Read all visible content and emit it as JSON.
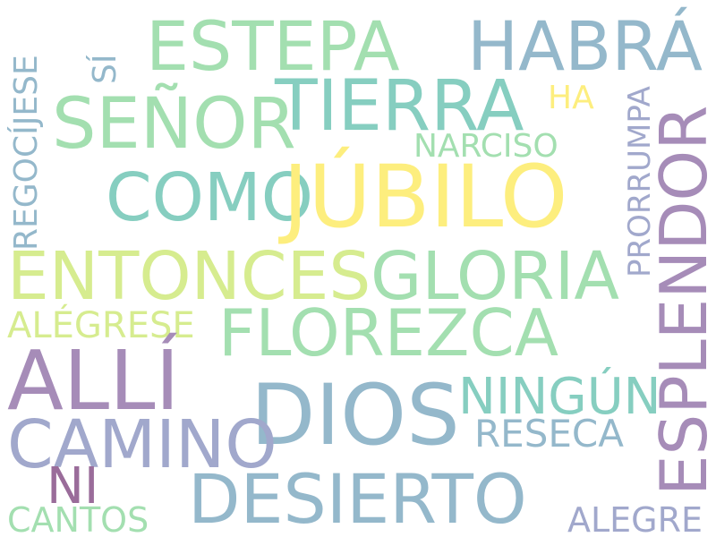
{
  "colors": {
    "background": "#ffffff",
    "yellow": "#fdee7e",
    "light_green": "#d6ec8f",
    "mint": "#a3dfb0",
    "teal": "#86cec0",
    "steel_blue": "#94b8cb",
    "slate": "#a1a8cc",
    "purple": "#a68cb8",
    "plum": "#9a6c9a"
  },
  "words": {
    "estepa": "ESTEPA",
    "habra": "HABRÁ",
    "tierra": "TIERRA",
    "senor": "SEÑOR",
    "ha": "HA",
    "si": "SÍ",
    "regocijese": "REGOCÍJESE",
    "narciso": "NARCISO",
    "como": "COMO",
    "jubilo": "JÚBILO",
    "prorrumpa": "PRORRUMPA",
    "esplendor": "ESPLENDOR",
    "entonces": "ENTONCES",
    "gloria": "GLORIA",
    "alegrese": "ALÉGRESE",
    "florezca": "FLOREZCA",
    "alli": "ALLÍ",
    "dios": "DIOS",
    "ningun": "NINGÚN",
    "camino": "CAMINO",
    "reseca": "RESECA",
    "ni": "NI",
    "desierto": "DESIERTO",
    "cantos": "CANTOS",
    "alegre": "ALEGRE"
  }
}
